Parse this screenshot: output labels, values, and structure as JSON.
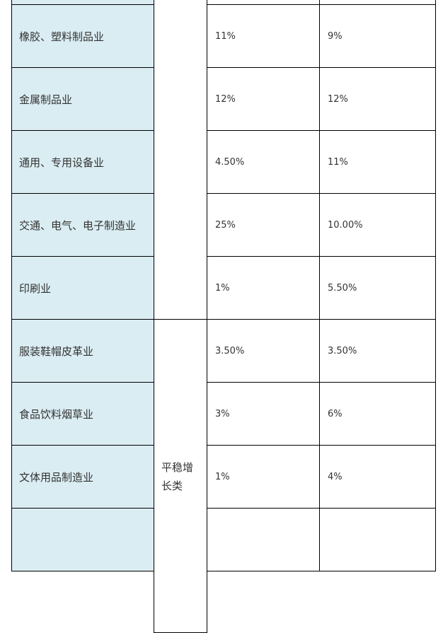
{
  "table": {
    "rows": [
      {
        "industry": "橡胶、塑料制品业",
        "v1": "11%",
        "v2": "9%"
      },
      {
        "industry": "金属制品业",
        "v1": "12%",
        "v2": "12%"
      },
      {
        "industry": "通用、专用设备业",
        "v1": "4.50%",
        "v2": "11%"
      },
      {
        "industry": "交通、电气、电子制造业",
        "v1": "25%",
        "v2": "10.00%"
      },
      {
        "industry": "印刷业",
        "v1": "1%",
        "v2": "5.50%"
      },
      {
        "industry": "服装鞋帽皮革业",
        "v1": "3.50%",
        "v2": "3.50%"
      },
      {
        "industry": "食品饮料烟草业",
        "v1": "3%",
        "v2": "6%"
      },
      {
        "industry": "文体用品制造业",
        "v1": "1%",
        "v2": "4%"
      }
    ],
    "group_label": "平稳增长类",
    "colors": {
      "category_bg": "#daedf3",
      "border": "#000000",
      "text": "#333333"
    }
  }
}
